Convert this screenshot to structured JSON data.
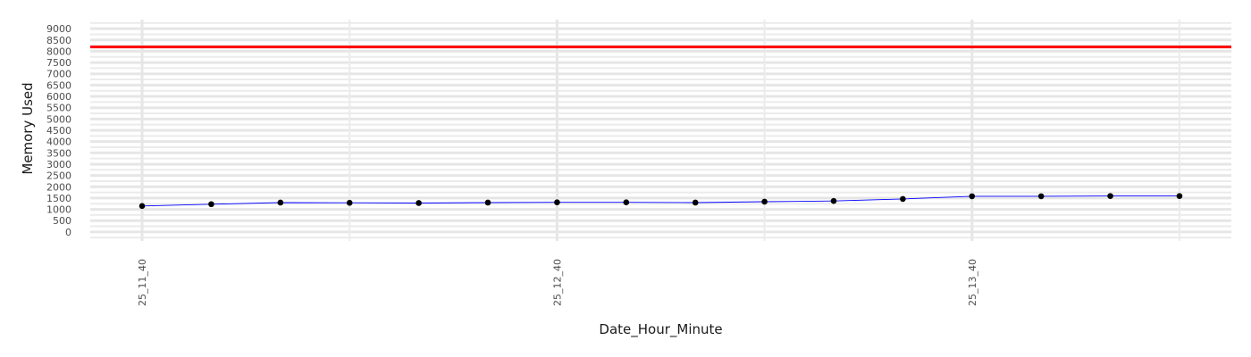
{
  "chart_data": {
    "type": "line",
    "xlabel": "Date_Hour_Minute",
    "ylabel": "Memory Used",
    "x": [
      0,
      10,
      20,
      30,
      40,
      50,
      60,
      70,
      80,
      90,
      100,
      110,
      120,
      130,
      140,
      150
    ],
    "x_tick_positions": [
      0,
      60,
      120
    ],
    "x_tick_labels": [
      "25_11_40",
      "25_12_40",
      "25_13_40"
    ],
    "y_ticks": [
      0,
      500,
      1000,
      1500,
      2000,
      2500,
      3000,
      3500,
      4000,
      4500,
      5000,
      5500,
      6000,
      6500,
      7000,
      7500,
      8000,
      8500,
      9000
    ],
    "ylim": [
      -400,
      9400
    ],
    "xlim": [
      -7.5,
      157.5
    ],
    "grid": true,
    "series": [
      {
        "values": [
          1150,
          1230,
          1300,
          1290,
          1280,
          1300,
          1310,
          1310,
          1300,
          1340,
          1370,
          1460,
          1580,
          1580,
          1590,
          1590
        ],
        "line_color": "#0000ff",
        "point_color": "#000000"
      }
    ],
    "hline": {
      "y": 8192,
      "color": "#ff0000"
    }
  }
}
